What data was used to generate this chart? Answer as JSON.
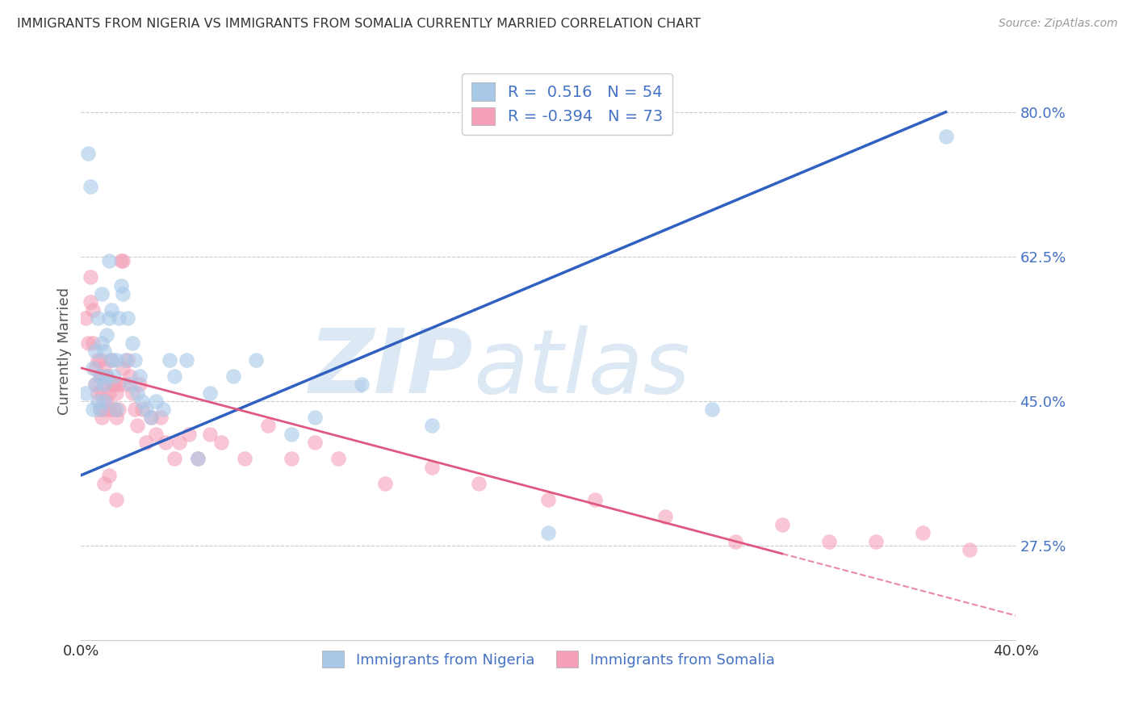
{
  "title": "IMMIGRANTS FROM NIGERIA VS IMMIGRANTS FROM SOMALIA CURRENTLY MARRIED CORRELATION CHART",
  "source": "Source: ZipAtlas.com",
  "ylabel": "Currently Married",
  "xlim": [
    0.0,
    0.4
  ],
  "ylim": [
    0.16,
    0.86
  ],
  "x_ticks": [
    0.0,
    0.05,
    0.1,
    0.15,
    0.2,
    0.25,
    0.3,
    0.35,
    0.4
  ],
  "y_ticks_right": [
    0.275,
    0.45,
    0.625,
    0.8
  ],
  "y_tick_labels_right": [
    "27.5%",
    "45.0%",
    "62.5%",
    "80.0%"
  ],
  "nigeria_R": 0.516,
  "nigeria_N": 54,
  "somalia_R": -0.394,
  "somalia_N": 73,
  "nigeria_color": "#a8c8e8",
  "somalia_color": "#f4a0b8",
  "nigeria_line_color": "#3060c0",
  "somalia_line_color": "#e05880",
  "watermark_zip": "ZIP",
  "watermark_atlas": "atlas",
  "watermark_color": "#dde8f5",
  "nigeria_scatter_x": [
    0.002,
    0.003,
    0.004,
    0.005,
    0.005,
    0.006,
    0.006,
    0.007,
    0.007,
    0.008,
    0.008,
    0.009,
    0.009,
    0.01,
    0.01,
    0.01,
    0.011,
    0.011,
    0.012,
    0.012,
    0.013,
    0.013,
    0.014,
    0.015,
    0.015,
    0.016,
    0.017,
    0.018,
    0.019,
    0.02,
    0.021,
    0.022,
    0.023,
    0.024,
    0.025,
    0.026,
    0.028,
    0.03,
    0.032,
    0.035,
    0.038,
    0.04,
    0.045,
    0.05,
    0.055,
    0.065,
    0.075,
    0.09,
    0.1,
    0.12,
    0.15,
    0.2,
    0.27,
    0.37
  ],
  "nigeria_scatter_y": [
    0.46,
    0.75,
    0.71,
    0.49,
    0.44,
    0.47,
    0.51,
    0.45,
    0.55,
    0.44,
    0.48,
    0.58,
    0.52,
    0.45,
    0.51,
    0.47,
    0.48,
    0.53,
    0.62,
    0.55,
    0.5,
    0.56,
    0.48,
    0.5,
    0.44,
    0.55,
    0.59,
    0.58,
    0.5,
    0.55,
    0.47,
    0.52,
    0.5,
    0.46,
    0.48,
    0.45,
    0.44,
    0.43,
    0.45,
    0.44,
    0.5,
    0.48,
    0.5,
    0.38,
    0.46,
    0.48,
    0.5,
    0.41,
    0.43,
    0.47,
    0.42,
    0.29,
    0.44,
    0.77
  ],
  "somalia_scatter_x": [
    0.002,
    0.003,
    0.004,
    0.004,
    0.005,
    0.005,
    0.006,
    0.006,
    0.007,
    0.007,
    0.008,
    0.008,
    0.008,
    0.009,
    0.009,
    0.009,
    0.01,
    0.01,
    0.01,
    0.011,
    0.011,
    0.012,
    0.012,
    0.013,
    0.013,
    0.014,
    0.014,
    0.015,
    0.015,
    0.016,
    0.016,
    0.017,
    0.018,
    0.018,
    0.019,
    0.02,
    0.021,
    0.022,
    0.023,
    0.024,
    0.025,
    0.026,
    0.028,
    0.03,
    0.032,
    0.034,
    0.036,
    0.04,
    0.042,
    0.046,
    0.05,
    0.055,
    0.06,
    0.07,
    0.08,
    0.09,
    0.1,
    0.11,
    0.13,
    0.15,
    0.17,
    0.2,
    0.22,
    0.25,
    0.28,
    0.3,
    0.32,
    0.34,
    0.36,
    0.38,
    0.01,
    0.012,
    0.015
  ],
  "somalia_scatter_y": [
    0.55,
    0.52,
    0.57,
    0.6,
    0.56,
    0.52,
    0.49,
    0.47,
    0.46,
    0.5,
    0.48,
    0.44,
    0.5,
    0.48,
    0.46,
    0.43,
    0.44,
    0.47,
    0.49,
    0.45,
    0.48,
    0.44,
    0.46,
    0.47,
    0.5,
    0.47,
    0.44,
    0.43,
    0.46,
    0.44,
    0.47,
    0.62,
    0.62,
    0.49,
    0.47,
    0.5,
    0.48,
    0.46,
    0.44,
    0.42,
    0.47,
    0.44,
    0.4,
    0.43,
    0.41,
    0.43,
    0.4,
    0.38,
    0.4,
    0.41,
    0.38,
    0.41,
    0.4,
    0.38,
    0.42,
    0.38,
    0.4,
    0.38,
    0.35,
    0.37,
    0.35,
    0.33,
    0.33,
    0.31,
    0.28,
    0.3,
    0.28,
    0.28,
    0.29,
    0.27,
    0.35,
    0.36,
    0.33
  ],
  "nigeria_line_x": [
    0.0,
    0.37
  ],
  "nigeria_line_y": [
    0.36,
    0.8
  ],
  "somalia_line_x": [
    0.0,
    0.4
  ],
  "somalia_line_y": [
    0.49,
    0.19
  ]
}
